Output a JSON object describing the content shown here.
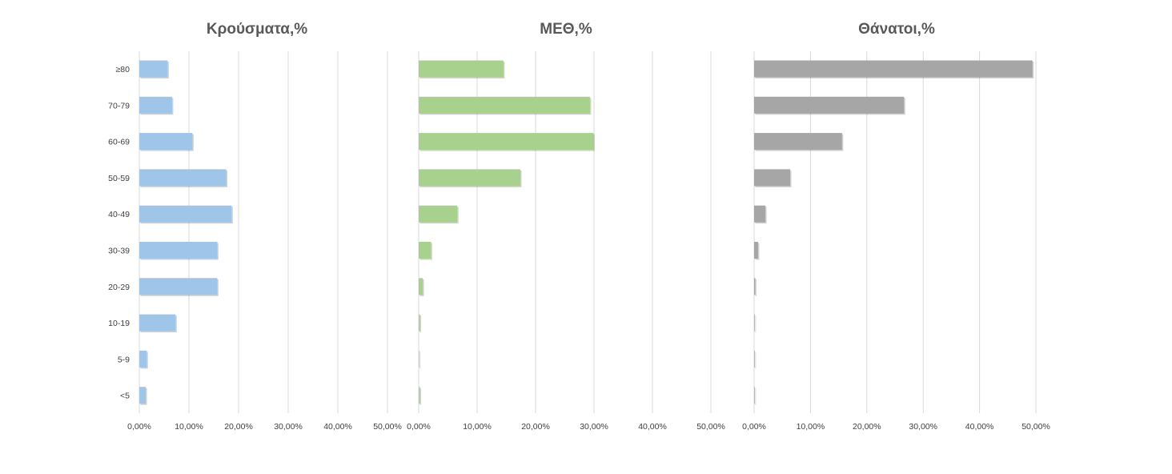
{
  "chart_data": [
    {
      "type": "bar",
      "orientation": "horizontal",
      "title": "Κρούσματα,%",
      "categories": [
        "≥80",
        "70-79",
        "60-69",
        "50-59",
        "40-49",
        "30-39",
        "20-29",
        "10-19",
        "5-9",
        "<5"
      ],
      "values": [
        0.057,
        0.066,
        0.107,
        0.175,
        0.186,
        0.157,
        0.157,
        0.073,
        0.015,
        0.013
      ],
      "xlim": [
        0,
        0.5
      ],
      "xticks": [
        "0,00%",
        "10,00%",
        "20,00%",
        "30,00%",
        "40,00%",
        "50,00%"
      ],
      "color": "#9fc5e8",
      "grid": true
    },
    {
      "type": "bar",
      "orientation": "horizontal",
      "title": "ΜΕΘ,%",
      "categories": [
        "≥80",
        "70-79",
        "60-69",
        "50-59",
        "40-49",
        "30-39",
        "20-29",
        "10-19",
        "5-9",
        "<5"
      ],
      "values": [
        0.145,
        0.293,
        0.299,
        0.174,
        0.066,
        0.021,
        0.007,
        0.002,
        0.001,
        0.002
      ],
      "xlim": [
        0,
        0.5
      ],
      "xticks": [
        "0,00%",
        "10,00%",
        "20,00%",
        "30,00%",
        "40,00%",
        "50,00%"
      ],
      "color": "#a9d18e",
      "grid": true
    },
    {
      "type": "bar",
      "orientation": "horizontal",
      "title": "Θάνατοι,%",
      "categories": [
        "≥80",
        "70-79",
        "60-69",
        "50-59",
        "40-49",
        "30-39",
        "20-29",
        "10-19",
        "5-9",
        "<5"
      ],
      "values": [
        0.494,
        0.266,
        0.156,
        0.064,
        0.02,
        0.007,
        0.002,
        0.001,
        0.0,
        0.0005
      ],
      "xlim": [
        0,
        0.5
      ],
      "xticks": [
        "0,00%",
        "10,00%",
        "20,00%",
        "30,00%",
        "40,00%",
        "50,00%"
      ],
      "color": "#a6a6a6",
      "grid": true
    }
  ]
}
